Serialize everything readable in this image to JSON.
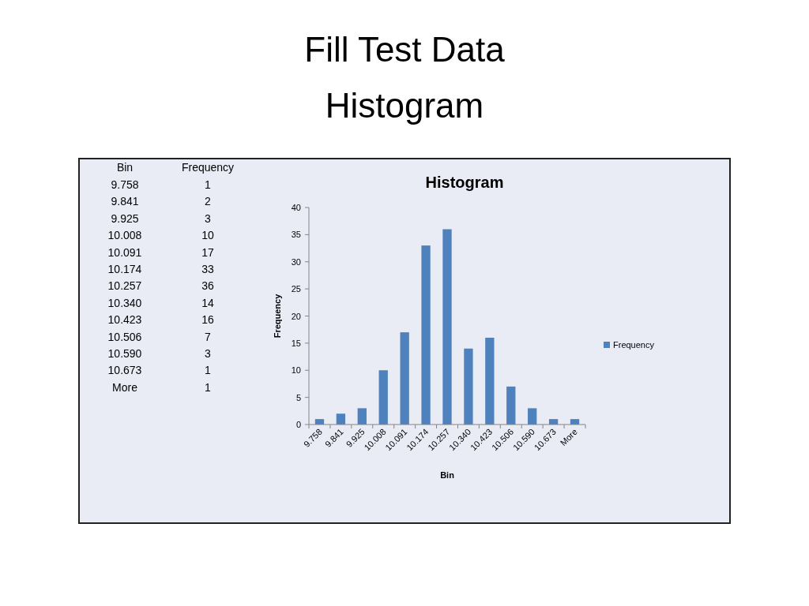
{
  "chart_data": {
    "type": "bar",
    "title": "Fill Test Data\nHistogram",
    "subtitle": "Histogram",
    "xlabel": "Bin",
    "ylabel": "Frequency",
    "categories": [
      "9.758",
      "9.841",
      "9.925",
      "10.008",
      "10.091",
      "10.174",
      "10.257",
      "10.340",
      "10.423",
      "10.506",
      "10.590",
      "10.673",
      "More"
    ],
    "series": [
      {
        "name": "Frequency",
        "color": "#4f81bd",
        "values": [
          1,
          2,
          3,
          10,
          17,
          33,
          36,
          14,
          16,
          7,
          3,
          1,
          1
        ]
      }
    ],
    "ylim": [
      0,
      40
    ],
    "yticks": [
      0,
      5,
      10,
      15,
      20,
      25,
      30,
      35,
      40
    ],
    "legend": "right",
    "annotations": [
      "1",
      "2",
      "3",
      "10",
      "17",
      "33",
      "36",
      "14",
      "16",
      "7",
      "3",
      "1",
      "1"
    ]
  }
}
